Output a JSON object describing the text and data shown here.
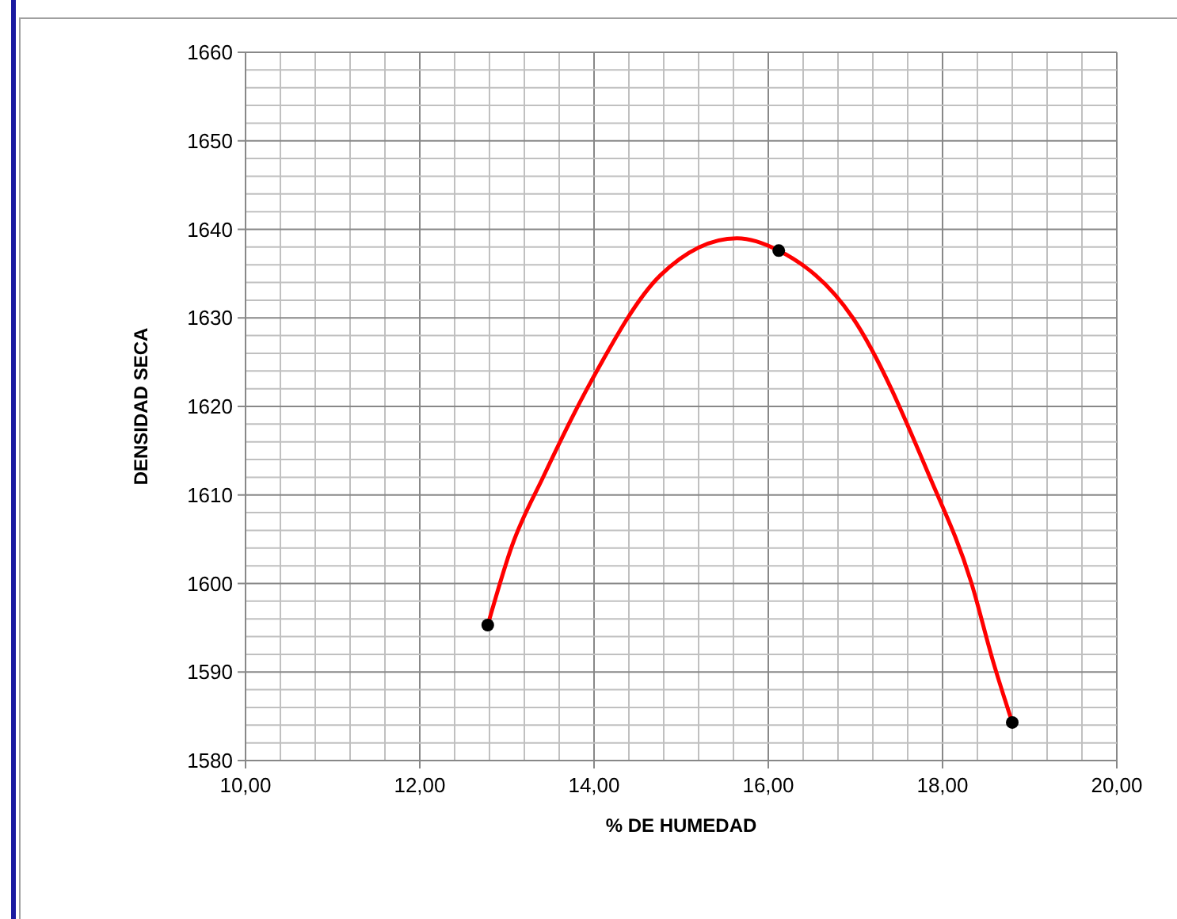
{
  "chart_data": {
    "type": "scatter",
    "xlabel": "% DE HUMEDAD",
    "ylabel": "DENSIDAD SECA",
    "xlim": [
      10,
      20
    ],
    "ylim": [
      1580,
      1660
    ],
    "xticks": [
      {
        "value": 10,
        "label": "10,00"
      },
      {
        "value": 10.4,
        "label": null
      },
      {
        "value": 10.8,
        "label": null
      },
      {
        "value": 11.2,
        "label": null
      },
      {
        "value": 11.6,
        "label": null
      },
      {
        "value": 12,
        "label": "12,00"
      },
      {
        "value": 12.4,
        "label": null
      },
      {
        "value": 12.8,
        "label": null
      },
      {
        "value": 13.2,
        "label": null
      },
      {
        "value": 13.6,
        "label": null
      },
      {
        "value": 14,
        "label": "14,00"
      },
      {
        "value": 14.4,
        "label": null
      },
      {
        "value": 14.8,
        "label": null
      },
      {
        "value": 15.2,
        "label": null
      },
      {
        "value": 15.6,
        "label": null
      },
      {
        "value": 16,
        "label": "16,00"
      },
      {
        "value": 16.4,
        "label": null
      },
      {
        "value": 16.8,
        "label": null
      },
      {
        "value": 17.2,
        "label": null
      },
      {
        "value": 17.6,
        "label": null
      },
      {
        "value": 18,
        "label": "18,00"
      },
      {
        "value": 18.4,
        "label": null
      },
      {
        "value": 18.8,
        "label": null
      },
      {
        "value": 19.2,
        "label": null
      },
      {
        "value": 19.6,
        "label": null
      },
      {
        "value": 20,
        "label": "20,00"
      }
    ],
    "yticks": [
      1580,
      {
        "value": 1582,
        "label": null
      },
      {
        "value": 1584,
        "label": null
      },
      {
        "value": 1586,
        "label": null
      },
      {
        "value": 1588,
        "label": null
      },
      1590,
      {
        "value": 1592,
        "label": null
      },
      {
        "value": 1594,
        "label": null
      },
      {
        "value": 1596,
        "label": null
      },
      {
        "value": 1598,
        "label": null
      },
      1600,
      {
        "value": 1602,
        "label": null
      },
      {
        "value": 1604,
        "label": null
      },
      {
        "value": 1606,
        "label": null
      },
      {
        "value": 1608,
        "label": null
      },
      1610,
      {
        "value": 1612,
        "label": null
      },
      {
        "value": 1614,
        "label": null
      },
      {
        "value": 1616,
        "label": null
      },
      {
        "value": 1618,
        "label": null
      },
      1620,
      {
        "value": 1622,
        "label": null
      },
      {
        "value": 1624,
        "label": null
      },
      {
        "value": 1626,
        "label": null
      },
      {
        "value": 1628,
        "label": null
      },
      1630,
      {
        "value": 1632,
        "label": null
      },
      {
        "value": 1634,
        "label": null
      },
      {
        "value": 1636,
        "label": null
      },
      {
        "value": 1638,
        "label": null
      },
      1640,
      {
        "value": 1642,
        "label": null
      },
      {
        "value": 1644,
        "label": null
      },
      {
        "value": 1646,
        "label": null
      },
      {
        "value": 1648,
        "label": null
      },
      1650,
      {
        "value": 1652,
        "label": null
      },
      {
        "value": 1654,
        "label": null
      },
      {
        "value": 1656,
        "label": null
      },
      {
        "value": 1658,
        "label": null
      },
      1660
    ],
    "grid": true,
    "series": [
      {
        "type": "line",
        "color": "#ff0000",
        "marker": "none",
        "line_style": "solid",
        "x": [
          12.78,
          13.06,
          13.42,
          13.97,
          14.76,
          15.64,
          16.12,
          16.97,
          17.85,
          18.33,
          18.58,
          18.8
        ],
        "values": [
          1595.3,
          1604.3,
          1612.1,
          1622.9,
          1634.8,
          1639,
          1637.6,
          1630,
          1612.1,
          1600.1,
          1591.2,
          1584.3
        ]
      },
      {
        "color": "#000000",
        "marker": "circle",
        "x": [
          12.78,
          16.12,
          18.8
        ],
        "values": [
          1595.3,
          1637.6,
          1584.3
        ]
      }
    ]
  }
}
